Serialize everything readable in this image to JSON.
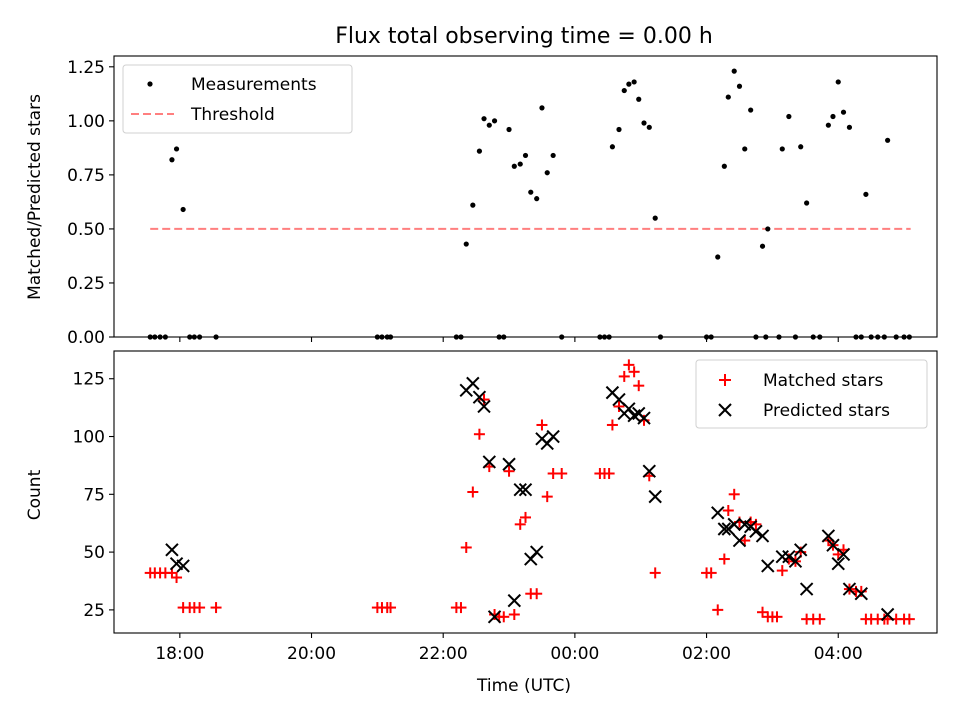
{
  "title": "Flux total observing time = 0.00 h",
  "colors": {
    "measurement": "#000000",
    "threshold": "#ff7f7f",
    "matched": "#ff0000",
    "predicted": "#000000",
    "axis": "#000000"
  },
  "chart_data": [
    {
      "type": "scatter",
      "name": "ratio-panel",
      "ylabel": "Matched/Predicted stars",
      "xlim_hours": [
        17.0,
        29.5
      ],
      "ylim": [
        0.0,
        1.3
      ],
      "yticks": [
        0.0,
        0.25,
        0.5,
        0.75,
        1.0,
        1.25
      ],
      "ytick_labels": [
        "0.00",
        "0.25",
        "0.50",
        "0.75",
        "1.00",
        "1.25"
      ],
      "xticks_hours": [
        18,
        20,
        22,
        24,
        26,
        28
      ],
      "legend": {
        "position": "upper-left",
        "entries": [
          "Measurements",
          "Threshold"
        ]
      },
      "threshold": {
        "value": 0.5,
        "x_range_hours": [
          17.55,
          29.1
        ]
      },
      "measurements": [
        [
          17.55,
          0.0
        ],
        [
          17.62,
          0.0
        ],
        [
          17.7,
          0.0
        ],
        [
          17.78,
          0.0
        ],
        [
          17.88,
          0.82
        ],
        [
          17.95,
          0.87
        ],
        [
          18.05,
          0.59
        ],
        [
          18.15,
          0.0
        ],
        [
          18.22,
          0.0
        ],
        [
          18.3,
          0.0
        ],
        [
          18.55,
          0.0
        ],
        [
          21.0,
          0.0
        ],
        [
          21.07,
          0.0
        ],
        [
          21.15,
          0.0
        ],
        [
          21.2,
          0.0
        ],
        [
          22.2,
          0.0
        ],
        [
          22.27,
          0.0
        ],
        [
          22.35,
          0.43
        ],
        [
          22.45,
          0.61
        ],
        [
          22.55,
          0.86
        ],
        [
          22.62,
          1.01
        ],
        [
          22.7,
          0.98
        ],
        [
          22.78,
          1.0
        ],
        [
          22.85,
          0.0
        ],
        [
          22.92,
          0.0
        ],
        [
          23.0,
          0.96
        ],
        [
          23.08,
          0.79
        ],
        [
          23.17,
          0.8
        ],
        [
          23.25,
          0.84
        ],
        [
          23.33,
          0.67
        ],
        [
          23.42,
          0.64
        ],
        [
          23.5,
          1.06
        ],
        [
          23.58,
          0.76
        ],
        [
          23.67,
          0.84
        ],
        [
          23.8,
          0.0
        ],
        [
          24.38,
          0.0
        ],
        [
          24.45,
          0.0
        ],
        [
          24.52,
          0.0
        ],
        [
          24.57,
          0.88
        ],
        [
          24.67,
          0.96
        ],
        [
          24.75,
          1.14
        ],
        [
          24.82,
          1.17
        ],
        [
          24.9,
          1.18
        ],
        [
          24.97,
          1.1
        ],
        [
          25.05,
          0.99
        ],
        [
          25.13,
          0.97
        ],
        [
          25.22,
          0.55
        ],
        [
          25.3,
          0.0
        ],
        [
          26.0,
          0.0
        ],
        [
          26.07,
          0.0
        ],
        [
          26.17,
          0.37
        ],
        [
          26.27,
          0.79
        ],
        [
          26.33,
          1.11
        ],
        [
          26.42,
          1.23
        ],
        [
          26.5,
          1.16
        ],
        [
          26.58,
          0.87
        ],
        [
          26.67,
          1.05
        ],
        [
          26.75,
          0.0
        ],
        [
          26.85,
          0.42
        ],
        [
          26.9,
          0.0
        ],
        [
          26.93,
          0.5
        ],
        [
          27.1,
          0.0
        ],
        [
          27.15,
          0.87
        ],
        [
          27.25,
          1.02
        ],
        [
          27.35,
          0.0
        ],
        [
          27.43,
          0.88
        ],
        [
          27.52,
          0.62
        ],
        [
          27.62,
          0.0
        ],
        [
          27.72,
          0.0
        ],
        [
          27.85,
          0.98
        ],
        [
          27.92,
          1.02
        ],
        [
          28.0,
          1.18
        ],
        [
          28.08,
          1.04
        ],
        [
          28.17,
          0.97
        ],
        [
          28.27,
          0.0
        ],
        [
          28.35,
          0.0
        ],
        [
          28.42,
          0.66
        ],
        [
          28.5,
          0.0
        ],
        [
          28.6,
          0.0
        ],
        [
          28.7,
          0.0
        ],
        [
          28.75,
          0.91
        ],
        [
          28.88,
          0.0
        ],
        [
          29.0,
          0.0
        ],
        [
          29.08,
          0.0
        ]
      ]
    },
    {
      "type": "scatter",
      "name": "count-panel",
      "ylabel": "Count",
      "xlabel": "Time (UTC)",
      "xlim_hours": [
        17.0,
        29.5
      ],
      "ylim": [
        15,
        137
      ],
      "yticks": [
        25,
        50,
        75,
        100,
        125
      ],
      "ytick_labels": [
        "25",
        "50",
        "75",
        "100",
        "125"
      ],
      "xticks_hours": [
        18,
        20,
        22,
        24,
        26,
        28
      ],
      "xtick_labels": [
        "18:00",
        "20:00",
        "22:00",
        "00:00",
        "02:00",
        "04:00"
      ],
      "legend": {
        "position": "upper-right",
        "entries": [
          "Matched stars",
          "Predicted stars"
        ]
      },
      "matched": [
        [
          17.55,
          41
        ],
        [
          17.62,
          41
        ],
        [
          17.7,
          41
        ],
        [
          17.78,
          41
        ],
        [
          17.88,
          41
        ],
        [
          17.95,
          39
        ],
        [
          18.05,
          26
        ],
        [
          18.15,
          26
        ],
        [
          18.22,
          26
        ],
        [
          18.3,
          26
        ],
        [
          18.55,
          26
        ],
        [
          21.0,
          26
        ],
        [
          21.07,
          26
        ],
        [
          21.15,
          26
        ],
        [
          21.2,
          26
        ],
        [
          22.2,
          26
        ],
        [
          22.27,
          26
        ],
        [
          22.35,
          52
        ],
        [
          22.45,
          76
        ],
        [
          22.55,
          101
        ],
        [
          22.62,
          116
        ],
        [
          22.7,
          87
        ],
        [
          22.78,
          23
        ],
        [
          22.85,
          22
        ],
        [
          22.92,
          22
        ],
        [
          23.0,
          85
        ],
        [
          23.08,
          23
        ],
        [
          23.17,
          62
        ],
        [
          23.25,
          65
        ],
        [
          23.33,
          32
        ],
        [
          23.42,
          32
        ],
        [
          23.5,
          105
        ],
        [
          23.58,
          74
        ],
        [
          23.67,
          84
        ],
        [
          23.8,
          84
        ],
        [
          24.38,
          84
        ],
        [
          24.45,
          84
        ],
        [
          24.52,
          84
        ],
        [
          24.57,
          105
        ],
        [
          24.67,
          113
        ],
        [
          24.75,
          126
        ],
        [
          24.82,
          131
        ],
        [
          24.9,
          128
        ],
        [
          24.97,
          122
        ],
        [
          25.05,
          107
        ],
        [
          25.13,
          83
        ],
        [
          25.22,
          41
        ],
        [
          26.0,
          41
        ],
        [
          26.07,
          41
        ],
        [
          26.17,
          25
        ],
        [
          26.27,
          47
        ],
        [
          26.33,
          68
        ],
        [
          26.42,
          75
        ],
        [
          26.5,
          63
        ],
        [
          26.58,
          55
        ],
        [
          26.67,
          63
        ],
        [
          26.75,
          62
        ],
        [
          26.85,
          24
        ],
        [
          26.93,
          22
        ],
        [
          27.0,
          22
        ],
        [
          27.07,
          22
        ],
        [
          27.15,
          42
        ],
        [
          27.25,
          47
        ],
        [
          27.35,
          46
        ],
        [
          27.43,
          50
        ],
        [
          27.52,
          21
        ],
        [
          27.62,
          21
        ],
        [
          27.72,
          21
        ],
        [
          27.85,
          55
        ],
        [
          27.92,
          53
        ],
        [
          28.0,
          49
        ],
        [
          28.08,
          51
        ],
        [
          28.17,
          34
        ],
        [
          28.27,
          33
        ],
        [
          28.35,
          33
        ],
        [
          28.42,
          21
        ],
        [
          28.5,
          21
        ],
        [
          28.6,
          21
        ],
        [
          28.7,
          21
        ],
        [
          28.75,
          21
        ],
        [
          28.88,
          21
        ],
        [
          29.0,
          21
        ],
        [
          29.08,
          21
        ]
      ],
      "predicted": [
        [
          17.88,
          51
        ],
        [
          17.95,
          45
        ],
        [
          18.05,
          44
        ],
        [
          22.35,
          120
        ],
        [
          22.45,
          123
        ],
        [
          22.55,
          117
        ],
        [
          22.62,
          113
        ],
        [
          22.7,
          89
        ],
        [
          22.78,
          22
        ],
        [
          23.0,
          88
        ],
        [
          23.08,
          29
        ],
        [
          23.17,
          77
        ],
        [
          23.25,
          77
        ],
        [
          23.33,
          47
        ],
        [
          23.42,
          50
        ],
        [
          23.5,
          99
        ],
        [
          23.58,
          97
        ],
        [
          23.67,
          100
        ],
        [
          24.57,
          119
        ],
        [
          24.67,
          116
        ],
        [
          24.75,
          110
        ],
        [
          24.82,
          112
        ],
        [
          24.9,
          109
        ],
        [
          24.97,
          110
        ],
        [
          25.05,
          108
        ],
        [
          25.13,
          85
        ],
        [
          25.22,
          74
        ],
        [
          26.17,
          67
        ],
        [
          26.27,
          60
        ],
        [
          26.33,
          60
        ],
        [
          26.42,
          62
        ],
        [
          26.5,
          55
        ],
        [
          26.58,
          62
        ],
        [
          26.67,
          61
        ],
        [
          26.75,
          59
        ],
        [
          26.85,
          57
        ],
        [
          26.93,
          44
        ],
        [
          27.15,
          48
        ],
        [
          27.25,
          48
        ],
        [
          27.35,
          46
        ],
        [
          27.43,
          51
        ],
        [
          27.52,
          34
        ],
        [
          27.85,
          57
        ],
        [
          27.92,
          53
        ],
        [
          28.0,
          45
        ],
        [
          28.08,
          49
        ],
        [
          28.17,
          34
        ],
        [
          28.35,
          32
        ],
        [
          28.75,
          23
        ]
      ]
    }
  ]
}
